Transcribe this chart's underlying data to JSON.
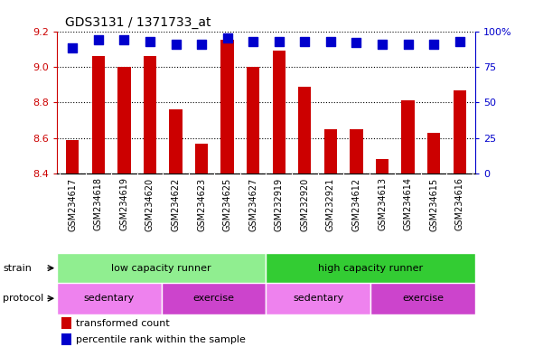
{
  "title": "GDS3131 / 1371733_at",
  "samples": [
    "GSM234617",
    "GSM234618",
    "GSM234619",
    "GSM234620",
    "GSM234622",
    "GSM234623",
    "GSM234625",
    "GSM234627",
    "GSM232919",
    "GSM232920",
    "GSM232921",
    "GSM234612",
    "GSM234613",
    "GSM234614",
    "GSM234615",
    "GSM234616"
  ],
  "transformed_count": [
    8.59,
    9.06,
    9.0,
    9.06,
    8.76,
    8.57,
    9.15,
    9.0,
    9.09,
    8.89,
    8.65,
    8.65,
    8.48,
    8.81,
    8.63,
    8.87
  ],
  "percentile_rank": [
    88,
    94,
    94,
    93,
    91,
    91,
    95,
    93,
    93,
    93,
    93,
    92,
    91,
    91,
    91,
    93
  ],
  "ylim_left": [
    8.4,
    9.2
  ],
  "ylim_right": [
    0,
    100
  ],
  "yticks_left": [
    8.4,
    8.6,
    8.8,
    9.0,
    9.2
  ],
  "yticks_right": [
    0,
    25,
    50,
    75,
    100
  ],
  "bar_color": "#cc0000",
  "dot_color": "#0000cc",
  "bg_color": "#cccccc",
  "light_green": "#90ee90",
  "dark_green": "#33cc33",
  "light_purple": "#ee82ee",
  "dark_purple": "#cc44cc",
  "strain_groups": [
    {
      "label": "low capacity runner",
      "start": 0,
      "end": 8,
      "color_key": "light_green"
    },
    {
      "label": "high capacity runner",
      "start": 8,
      "end": 16,
      "color_key": "dark_green"
    }
  ],
  "protocol_groups": [
    {
      "label": "sedentary",
      "start": 0,
      "end": 4,
      "color_key": "light_purple"
    },
    {
      "label": "exercise",
      "start": 4,
      "end": 8,
      "color_key": "dark_purple"
    },
    {
      "label": "sedentary",
      "start": 8,
      "end": 12,
      "color_key": "light_purple"
    },
    {
      "label": "exercise",
      "start": 12,
      "end": 16,
      "color_key": "dark_purple"
    }
  ],
  "legend_items": [
    {
      "label": "transformed count",
      "color": "#cc0000"
    },
    {
      "label": "percentile rank within the sample",
      "color": "#0000cc"
    }
  ],
  "left_axis_color": "#cc0000",
  "right_axis_color": "#0000cc",
  "grid_color": "#000000",
  "bar_width": 0.5,
  "dot_marker_size": 55,
  "strain_label": "strain",
  "protocol_label": "protocol"
}
